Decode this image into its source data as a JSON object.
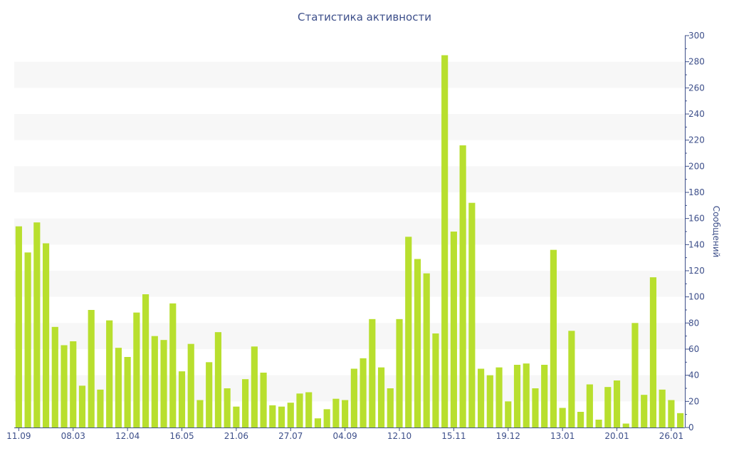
{
  "chart_data": {
    "type": "bar",
    "title": "Статистика активности",
    "ylabel": "Сообщений",
    "xlabel": "",
    "ylim": [
      0,
      300
    ],
    "y_ticks": [
      0,
      20,
      40,
      60,
      80,
      100,
      120,
      140,
      160,
      180,
      200,
      220,
      240,
      260,
      280,
      300
    ],
    "x_tick_labels": [
      {
        "index": 0,
        "label": "11.09"
      },
      {
        "index": 6,
        "label": "08.03"
      },
      {
        "index": 12,
        "label": "12.04"
      },
      {
        "index": 18,
        "label": "16.05"
      },
      {
        "index": 24,
        "label": "21.06"
      },
      {
        "index": 30,
        "label": "27.07"
      },
      {
        "index": 36,
        "label": "04.09"
      },
      {
        "index": 42,
        "label": "12.10"
      },
      {
        "index": 48,
        "label": "15.11"
      },
      {
        "index": 54,
        "label": "19.12"
      },
      {
        "index": 60,
        "label": "13.01"
      },
      {
        "index": 66,
        "label": "20.01"
      },
      {
        "index": 72,
        "label": "26.01"
      }
    ],
    "values": [
      154,
      134,
      157,
      141,
      77,
      63,
      66,
      32,
      90,
      29,
      82,
      61,
      54,
      88,
      102,
      70,
      67,
      95,
      43,
      64,
      21,
      50,
      73,
      30,
      16,
      37,
      62,
      42,
      17,
      16,
      19,
      26,
      27,
      7,
      14,
      22,
      21,
      45,
      53,
      83,
      46,
      30,
      83,
      146,
      129,
      118,
      72,
      285,
      150,
      216,
      172,
      45,
      40,
      46,
      20,
      48,
      49,
      30,
      48,
      136,
      15,
      74,
      12,
      33,
      6,
      31,
      36,
      3,
      80,
      25,
      115,
      29,
      21,
      11
    ],
    "grid": "alternating horizontal bands",
    "legend": "none",
    "colors": {
      "bar": "#b8df2e",
      "band": "#f7f7f7",
      "axis": "#3d4f8a",
      "text": "#3d4f8a"
    }
  }
}
